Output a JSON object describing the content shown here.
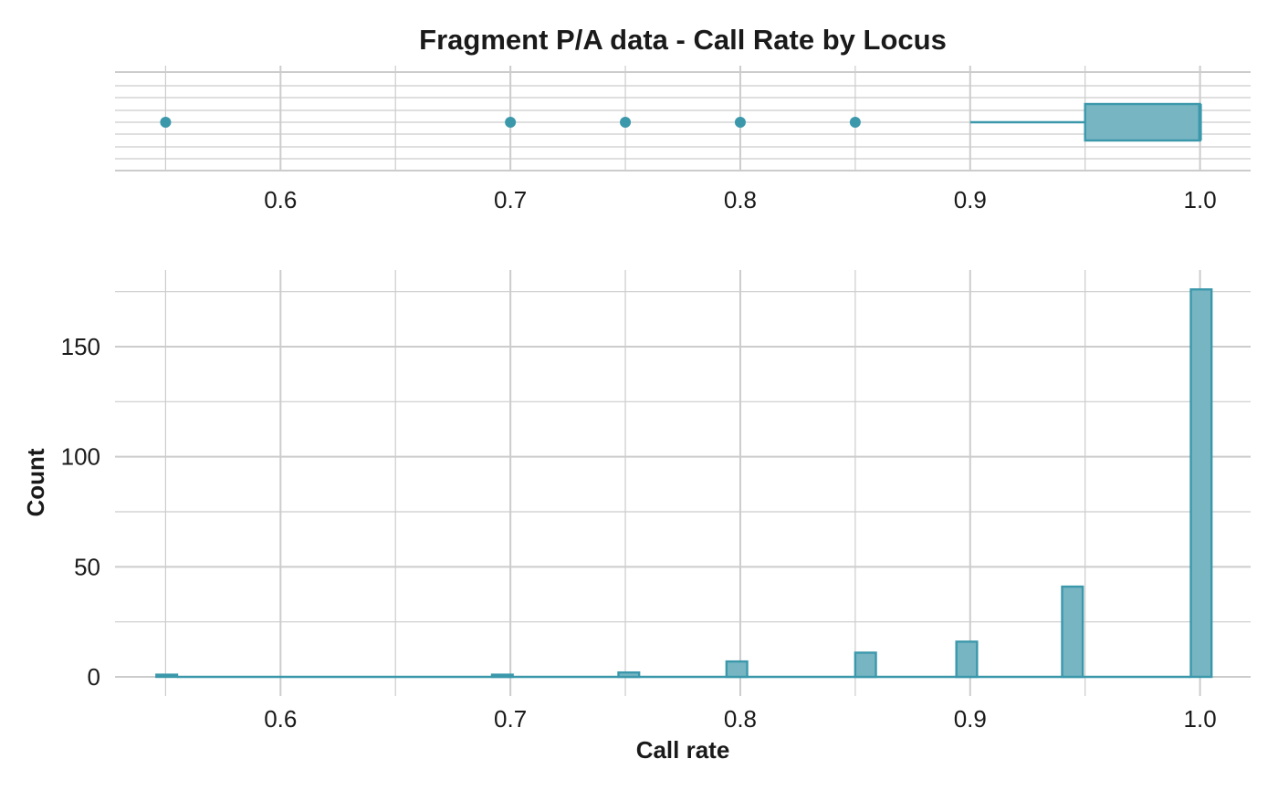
{
  "chart_data": [
    {
      "type": "box",
      "title": "Fragment P/A data - Call Rate by Locus",
      "xlim": [
        0.528,
        1.022
      ],
      "x_ticks": [
        "0.6",
        "0.7",
        "0.8",
        "0.9",
        "1.0"
      ],
      "x_tick_values": [
        0.6,
        0.7,
        0.8,
        0.9,
        1.0
      ],
      "box": {
        "whisker_low": 0.9,
        "q1": 0.95,
        "median": 1.0,
        "q3": 1.0,
        "whisker_high": 1.0
      },
      "outliers": [
        0.55,
        0.7,
        0.75,
        0.8,
        0.85
      ],
      "grid": true,
      "colors": {
        "fill": "#77b5c3",
        "stroke": "#3b98ab",
        "grid": "#cccccc"
      }
    },
    {
      "type": "bar",
      "xlabel": "Call rate",
      "ylabel": "Count",
      "xlim": [
        0.528,
        1.022
      ],
      "ylim": [
        -7,
        180
      ],
      "x_ticks": [
        "0.6",
        "0.7",
        "0.8",
        "0.9",
        "1.0"
      ],
      "x_tick_values": [
        0.6,
        0.7,
        0.8,
        0.9,
        1.0
      ],
      "y_ticks": [
        "0",
        "50",
        "100",
        "150"
      ],
      "y_tick_values": [
        0,
        50,
        100,
        150
      ],
      "bin_width": 0.009,
      "bins": [
        {
          "x": 0.5505,
          "count": 1
        },
        {
          "x": 0.6965,
          "count": 1
        },
        {
          "x": 0.7515,
          "count": 2
        },
        {
          "x": 0.7985,
          "count": 7
        },
        {
          "x": 0.8545,
          "count": 11
        },
        {
          "x": 0.8985,
          "count": 16
        },
        {
          "x": 0.9445,
          "count": 41
        },
        {
          "x": 1.0005,
          "count": 176
        }
      ],
      "baseline_range": [
        0.555,
        0.996
      ],
      "grid": true,
      "colors": {
        "fill": "#77b5c3",
        "stroke": "#3b98ab",
        "grid": "#cccccc"
      }
    }
  ]
}
